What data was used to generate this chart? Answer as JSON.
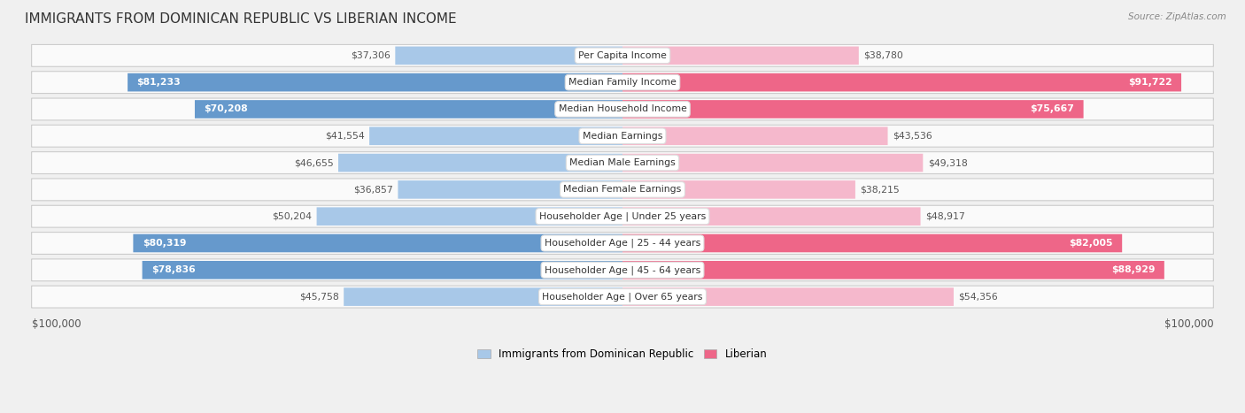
{
  "title": "IMMIGRANTS FROM DOMINICAN REPUBLIC VS LIBERIAN INCOME",
  "source": "Source: ZipAtlas.com",
  "categories": [
    "Per Capita Income",
    "Median Family Income",
    "Median Household Income",
    "Median Earnings",
    "Median Male Earnings",
    "Median Female Earnings",
    "Householder Age | Under 25 years",
    "Householder Age | 25 - 44 years",
    "Householder Age | 45 - 64 years",
    "Householder Age | Over 65 years"
  ],
  "dominican_values": [
    37306,
    81233,
    70208,
    41554,
    46655,
    36857,
    50204,
    80319,
    78836,
    45758
  ],
  "liberian_values": [
    38780,
    91722,
    75667,
    43536,
    49318,
    38215,
    48917,
    82005,
    88929,
    54356
  ],
  "dominican_color_light": "#a8c8e8",
  "dominican_color_dark": "#6699cc",
  "liberian_color_light": "#f5b8cc",
  "liberian_color_dark": "#ee6688",
  "max_value": 100000,
  "background_color": "#f0f0f0",
  "row_bg_color": "#fafafa",
  "legend_dominican_label": "Immigrants from Dominican Republic",
  "legend_liberian_label": "Liberian",
  "xlabel_left": "$100,000",
  "xlabel_right": "$100,000",
  "dark_threshold": 65000
}
